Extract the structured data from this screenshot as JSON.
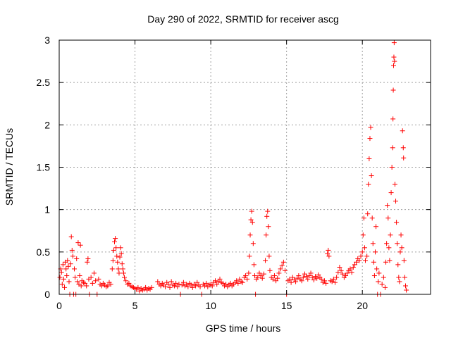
{
  "chart_data": {
    "type": "scatter",
    "title": "Day 290 of 2022, SRMTID for receiver ascg",
    "xlabel": "GPS time / hours",
    "ylabel": "SRMTID / TECUs",
    "xlim": [
      0,
      24.5
    ],
    "ylim": [
      0,
      3
    ],
    "x_ticks": [
      0,
      5,
      10,
      15,
      20
    ],
    "x_tick_labels": [
      "0",
      "5",
      "10",
      "15",
      "20"
    ],
    "y_ticks": [
      0,
      0.5,
      1,
      1.5,
      2,
      2.5,
      3
    ],
    "y_tick_labels": [
      "0",
      "0.5",
      "1",
      "1.5",
      "2",
      "2.5",
      "3"
    ],
    "grid": true,
    "marker": "+",
    "series": [
      {
        "name": "SRMTID",
        "color": "#ff0000",
        "points": [
          [
            0.05,
            0.2
          ],
          [
            0.1,
            0.3
          ],
          [
            0.15,
            0.26
          ],
          [
            0.2,
            0.12
          ],
          [
            0.25,
            0.35
          ],
          [
            0.3,
            0.18
          ],
          [
            0.35,
            0.08
          ],
          [
            0.4,
            0.38
          ],
          [
            0.45,
            0.3
          ],
          [
            0.5,
            0.22
          ],
          [
            0.55,
            0.4
          ],
          [
            0.6,
            0.33
          ],
          [
            0.65,
            0.15
          ],
          [
            0.7,
            0.0
          ],
          [
            0.75,
            0.36
          ],
          [
            0.8,
            0.68
          ],
          [
            0.85,
            0.52
          ],
          [
            0.9,
            0.45
          ],
          [
            0.95,
            0.0
          ],
          [
            1.0,
            0.3
          ],
          [
            1.05,
            0.2
          ],
          [
            1.1,
            0.0
          ],
          [
            1.15,
            0.42
          ],
          [
            1.2,
            0.15
          ],
          [
            1.25,
            0.61
          ],
          [
            1.3,
            0.12
          ],
          [
            1.35,
            0.22
          ],
          [
            1.4,
            0.58
          ],
          [
            1.45,
            0.1
          ],
          [
            1.5,
            0.16
          ],
          [
            1.6,
            0.14
          ],
          [
            1.7,
            0.13
          ],
          [
            1.8,
            0.1
          ],
          [
            1.85,
            0.38
          ],
          [
            1.9,
            0.42
          ],
          [
            1.95,
            0.18
          ],
          [
            2.0,
            0.0
          ],
          [
            2.1,
            0.2
          ],
          [
            2.2,
            0.13
          ],
          [
            2.3,
            0.25
          ],
          [
            2.4,
            0.16
          ],
          [
            2.5,
            0.0
          ],
          [
            2.6,
            0.18
          ],
          [
            2.7,
            0.12
          ],
          [
            2.8,
            0.1
          ],
          [
            2.9,
            0.13
          ],
          [
            3.0,
            0.11
          ],
          [
            3.1,
            0.09
          ],
          [
            3.2,
            0.1
          ],
          [
            3.3,
            0.14
          ],
          [
            3.4,
            0.12
          ],
          [
            3.5,
            0.3
          ],
          [
            3.55,
            0.4
          ],
          [
            3.6,
            0.52
          ],
          [
            3.65,
            0.62
          ],
          [
            3.7,
            0.66
          ],
          [
            3.75,
            0.55
          ],
          [
            3.8,
            0.45
          ],
          [
            3.85,
            0.38
          ],
          [
            3.9,
            0.3
          ],
          [
            3.95,
            0.25
          ],
          [
            4.0,
            0.44
          ],
          [
            4.05,
            0.55
          ],
          [
            4.1,
            0.48
          ],
          [
            4.15,
            0.36
          ],
          [
            4.2,
            0.3
          ],
          [
            4.25,
            0.25
          ],
          [
            4.3,
            0.2
          ],
          [
            4.4,
            0.16
          ],
          [
            4.5,
            0.12
          ],
          [
            4.6,
            0.13
          ],
          [
            4.7,
            0.1
          ],
          [
            4.8,
            0.09
          ],
          [
            4.9,
            0.08
          ],
          [
            5.0,
            0.07
          ],
          [
            5.1,
            0.06
          ],
          [
            5.2,
            0.08
          ],
          [
            5.3,
            0.04
          ],
          [
            5.4,
            0.07
          ],
          [
            5.5,
            0.05
          ],
          [
            5.6,
            0.06
          ],
          [
            5.7,
            0.08
          ],
          [
            5.8,
            0.05
          ],
          [
            5.9,
            0.07
          ],
          [
            6.0,
            0.06
          ],
          [
            6.1,
            0.08
          ],
          [
            6.5,
            0.15
          ],
          [
            6.6,
            0.12
          ],
          [
            6.7,
            0.1
          ],
          [
            6.8,
            0.13
          ],
          [
            6.9,
            0.11
          ],
          [
            7.0,
            0.09
          ],
          [
            7.1,
            0.14
          ],
          [
            7.2,
            0.12
          ],
          [
            7.3,
            0.08
          ],
          [
            7.4,
            0.15
          ],
          [
            7.5,
            0.11
          ],
          [
            7.6,
            0.1
          ],
          [
            7.7,
            0.13
          ],
          [
            7.8,
            0.09
          ],
          [
            7.9,
            0.12
          ],
          [
            8.0,
            0.0
          ],
          [
            8.1,
            0.11
          ],
          [
            8.2,
            0.14
          ],
          [
            8.3,
            0.1
          ],
          [
            8.4,
            0.12
          ],
          [
            8.5,
            0.09
          ],
          [
            8.6,
            0.13
          ],
          [
            8.7,
            0.11
          ],
          [
            8.8,
            0.08
          ],
          [
            8.9,
            0.12
          ],
          [
            9.0,
            0.1
          ],
          [
            9.1,
            0.14
          ],
          [
            9.2,
            0.11
          ],
          [
            9.3,
            0.09
          ],
          [
            9.4,
            0.0
          ],
          [
            9.5,
            0.12
          ],
          [
            9.6,
            0.1
          ],
          [
            9.7,
            0.13
          ],
          [
            9.8,
            0.09
          ],
          [
            9.9,
            0.11
          ],
          [
            10.0,
            0.12
          ],
          [
            10.1,
            0.1
          ],
          [
            10.2,
            0.14
          ],
          [
            10.3,
            0.16
          ],
          [
            10.4,
            0.12
          ],
          [
            10.5,
            0.15
          ],
          [
            10.6,
            0.18
          ],
          [
            10.7,
            0.14
          ],
          [
            10.8,
            0.13
          ],
          [
            10.9,
            0.1
          ],
          [
            11.0,
            0.12
          ],
          [
            11.1,
            0.09
          ],
          [
            11.2,
            0.11
          ],
          [
            11.3,
            0.13
          ],
          [
            11.4,
            0.1
          ],
          [
            11.5,
            0.12
          ],
          [
            11.6,
            0.14
          ],
          [
            11.7,
            0.16
          ],
          [
            11.8,
            0.13
          ],
          [
            11.9,
            0.18
          ],
          [
            12.0,
            0.15
          ],
          [
            12.1,
            0.14
          ],
          [
            12.2,
            0.2
          ],
          [
            12.3,
            0.22
          ],
          [
            12.4,
            0.18
          ],
          [
            12.5,
            0.25
          ],
          [
            12.55,
            0.45
          ],
          [
            12.6,
            0.7
          ],
          [
            12.65,
            0.88
          ],
          [
            12.7,
            0.98
          ],
          [
            12.75,
            0.85
          ],
          [
            12.8,
            0.6
          ],
          [
            12.85,
            0.35
          ],
          [
            12.9,
            0.22
          ],
          [
            12.95,
            0.0
          ],
          [
            13.0,
            0.18
          ],
          [
            13.1,
            0.2
          ],
          [
            13.2,
            0.25
          ],
          [
            13.3,
            0.22
          ],
          [
            13.4,
            0.19
          ],
          [
            13.5,
            0.24
          ],
          [
            13.6,
            0.4
          ],
          [
            13.65,
            0.7
          ],
          [
            13.7,
            0.92
          ],
          [
            13.75,
            0.98
          ],
          [
            13.8,
            0.8
          ],
          [
            13.85,
            0.45
          ],
          [
            13.9,
            0.28
          ],
          [
            14.0,
            0.2
          ],
          [
            14.1,
            0.18
          ],
          [
            14.2,
            0.22
          ],
          [
            14.3,
            0.16
          ],
          [
            14.4,
            0.19
          ],
          [
            14.5,
            0.25
          ],
          [
            14.6,
            0.3
          ],
          [
            14.7,
            0.34
          ],
          [
            14.8,
            0.38
          ],
          [
            14.9,
            0.28
          ],
          [
            15.0,
            0.0
          ],
          [
            15.1,
            0.16
          ],
          [
            15.2,
            0.18
          ],
          [
            15.3,
            0.14
          ],
          [
            15.4,
            0.2
          ],
          [
            15.5,
            0.17
          ],
          [
            15.6,
            0.15
          ],
          [
            15.7,
            0.19
          ],
          [
            15.8,
            0.22
          ],
          [
            15.9,
            0.18
          ],
          [
            16.0,
            0.16
          ],
          [
            16.1,
            0.2
          ],
          [
            16.2,
            0.24
          ],
          [
            16.3,
            0.21
          ],
          [
            16.4,
            0.18
          ],
          [
            16.5,
            0.22
          ],
          [
            16.6,
            0.25
          ],
          [
            16.7,
            0.2
          ],
          [
            16.8,
            0.17
          ],
          [
            16.9,
            0.21
          ],
          [
            17.0,
            0.19
          ],
          [
            17.1,
            0.23
          ],
          [
            17.2,
            0.2
          ],
          [
            17.3,
            0.18
          ],
          [
            17.4,
            0.14
          ],
          [
            17.5,
            0.16
          ],
          [
            17.6,
            0.13
          ],
          [
            17.7,
            0.48
          ],
          [
            17.75,
            0.52
          ],
          [
            17.8,
            0.45
          ],
          [
            17.9,
            0.16
          ],
          [
            18.0,
            0.15
          ],
          [
            18.1,
            0.18
          ],
          [
            18.2,
            0.14
          ],
          [
            18.3,
            0.2
          ],
          [
            18.4,
            0.26
          ],
          [
            18.5,
            0.32
          ],
          [
            18.6,
            0.28
          ],
          [
            18.7,
            0.24
          ],
          [
            18.8,
            0.2
          ],
          [
            18.9,
            0.22
          ],
          [
            19.0,
            0.25
          ],
          [
            19.1,
            0.28
          ],
          [
            19.2,
            0.3
          ],
          [
            19.3,
            0.26
          ],
          [
            19.4,
            0.32
          ],
          [
            19.5,
            0.35
          ],
          [
            19.6,
            0.38
          ],
          [
            19.7,
            0.42
          ],
          [
            19.8,
            0.4
          ],
          [
            19.9,
            0.45
          ],
          [
            20.0,
            0.5
          ],
          [
            20.05,
            0.7
          ],
          [
            20.1,
            0.9
          ],
          [
            20.15,
            0.55
          ],
          [
            20.2,
            0.4
          ],
          [
            20.3,
            0.45
          ],
          [
            20.35,
            0.95
          ],
          [
            20.4,
            1.3
          ],
          [
            20.45,
            1.6
          ],
          [
            20.5,
            1.84
          ],
          [
            20.55,
            1.97
          ],
          [
            20.6,
            1.4
          ],
          [
            20.65,
            0.9
          ],
          [
            20.7,
            0.6
          ],
          [
            20.75,
            0.38
          ],
          [
            20.8,
            0.22
          ],
          [
            20.85,
            0.5
          ],
          [
            20.9,
            0.8
          ],
          [
            20.95,
            0.3
          ],
          [
            21.0,
            0.0
          ],
          [
            21.05,
            0.15
          ],
          [
            21.1,
            0.25
          ],
          [
            21.2,
            0.0
          ],
          [
            21.3,
            0.12
          ],
          [
            21.4,
            0.2
          ],
          [
            21.5,
            0.08
          ],
          [
            21.55,
            0.38
          ],
          [
            21.6,
            0.6
          ],
          [
            21.65,
            1.05
          ],
          [
            21.7,
            0.9
          ],
          [
            21.75,
            0.55
          ],
          [
            21.8,
            0.4
          ],
          [
            21.85,
            0.7
          ],
          [
            21.9,
            1.2
          ],
          [
            21.95,
            1.5
          ],
          [
            22.0,
            1.73
          ],
          [
            22.02,
            2.07
          ],
          [
            22.04,
            2.41
          ],
          [
            22.06,
            2.7
          ],
          [
            22.08,
            2.8
          ],
          [
            22.1,
            2.97
          ],
          [
            22.12,
            2.75
          ],
          [
            22.15,
            1.3
          ],
          [
            22.2,
            1.1
          ],
          [
            22.25,
            0.85
          ],
          [
            22.3,
            0.6
          ],
          [
            22.35,
            0.35
          ],
          [
            22.4,
            0.2
          ],
          [
            22.45,
            0.15
          ],
          [
            22.5,
            0.5
          ],
          [
            22.55,
            0.7
          ],
          [
            22.6,
            0.55
          ],
          [
            22.65,
            1.93
          ],
          [
            22.7,
            1.73
          ],
          [
            22.72,
            1.61
          ],
          [
            22.75,
            0.4
          ],
          [
            22.8,
            0.2
          ],
          [
            22.85,
            0.1
          ],
          [
            22.9,
            0.05
          ]
        ]
      }
    ]
  }
}
